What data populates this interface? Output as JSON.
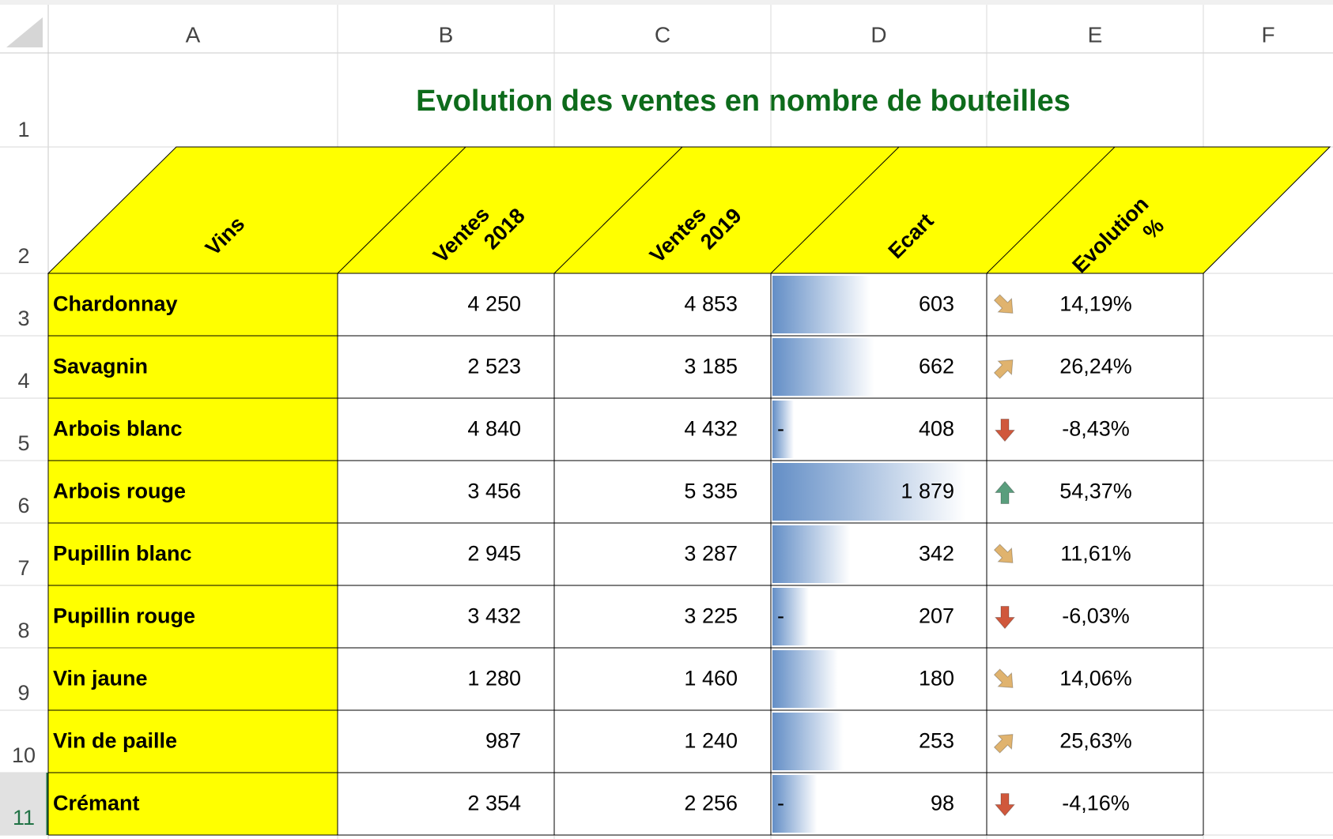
{
  "columns": [
    "A",
    "B",
    "C",
    "D",
    "E",
    "F"
  ],
  "row_numbers": [
    "1",
    "2",
    "3",
    "4",
    "5",
    "6",
    "7",
    "8",
    "9",
    "10",
    "11"
  ],
  "title": "Evolution des ventes en nombre de bouteilles",
  "headers": [
    [
      "Vins"
    ],
    [
      "Ventes",
      "2018"
    ],
    [
      "Ventes",
      "2019"
    ],
    [
      "Ecart"
    ],
    [
      "Evolution",
      "%"
    ]
  ],
  "table": {
    "rows": [
      {
        "vin": "Chardonnay",
        "ventes_2018": "4 250",
        "ventes_2019": "4 853",
        "ecart": "603",
        "evolution": "14,19%",
        "icon": "down-right"
      },
      {
        "vin": "Savagnin",
        "ventes_2018": "2 523",
        "ventes_2019": "3 185",
        "ecart": "662",
        "evolution": "26,24%",
        "icon": "up-right"
      },
      {
        "vin": "Arbois blanc",
        "ventes_2018": "4 840",
        "ventes_2019": "4 432",
        "ecart_sign": "-",
        "ecart": "408",
        "evolution": "-8,43%",
        "icon": "down"
      },
      {
        "vin": "Arbois rouge",
        "ventes_2018": "3 456",
        "ventes_2019": "5 335",
        "ecart": "1 879",
        "evolution": "54,37%",
        "icon": "up"
      },
      {
        "vin": "Pupillin blanc",
        "ventes_2018": "2 945",
        "ventes_2019": "3 287",
        "ecart": "342",
        "evolution": "11,61%",
        "icon": "down-right"
      },
      {
        "vin": "Pupillin rouge",
        "ventes_2018": "3 432",
        "ventes_2019": "3 225",
        "ecart_sign": "-",
        "ecart": "207",
        "evolution": "-6,03%",
        "icon": "down"
      },
      {
        "vin": "Vin jaune",
        "ventes_2018": "1 280",
        "ventes_2019": "1 460",
        "ecart": "180",
        "evolution": "14,06%",
        "icon": "down-right"
      },
      {
        "vin": "Vin de paille",
        "ventes_2018": "987",
        "ventes_2019": "1 240",
        "ecart": "253",
        "evolution": "25,63%",
        "icon": "up-right"
      },
      {
        "vin": "Crémant",
        "ventes_2018": "2 354",
        "ventes_2019": "2 256",
        "ecart_sign": "-",
        "ecart": "98",
        "evolution": "-4,16%",
        "icon": "down"
      }
    ]
  },
  "data_bar_color": "#638ec6"
}
